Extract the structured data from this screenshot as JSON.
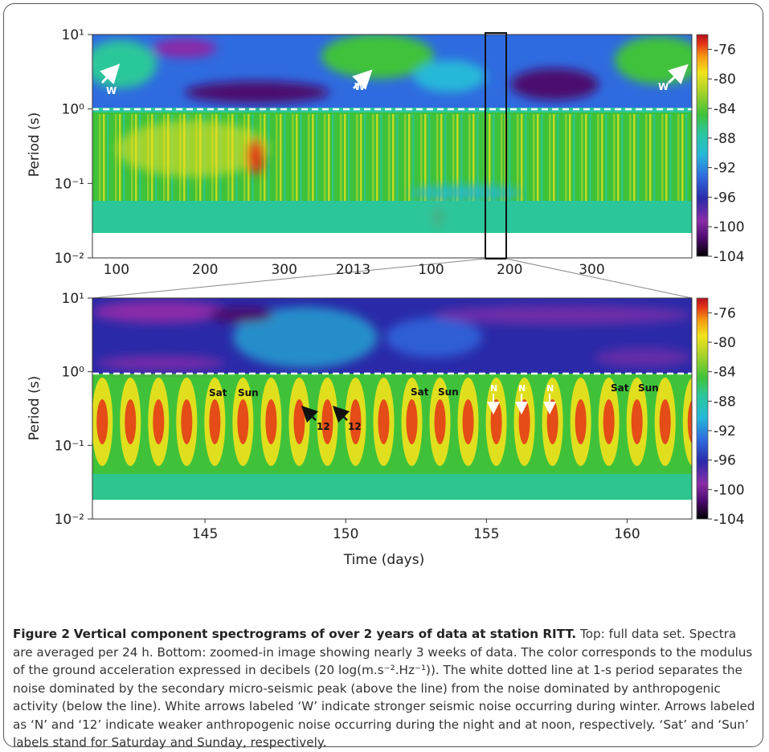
{
  "figure": {
    "label": "Figure 2",
    "title": "Vertical component spectrograms of over 2 years of data at station RITT.",
    "caption_text": "Top: full data set. Spectra are averaged per 24 h. Bottom: zoomed-in image showing nearly 3 weeks of data. The color corresponds to the modulus of the ground acceleration expressed in decibels (20 log(m.s⁻².Hz⁻¹)). The white dotted line at 1-s period separates the noise dominated by the secondary micro-seismic peak (above the line) from the noise dominated by anthropogenic activity (below the line). White arrows labeled ‘W’ indicate stronger seismic noise occurring during winter. Arrows labeled as ‘N’ and ‘12’ indicate weaker anthropogenic noise occurring during the night and at noon, respectively. ‘Sat’ and ‘Sun’ labels stand for Saturday and Sunday, respectively."
  },
  "colors": {
    "cmap": [
      "#000000",
      "#4b0a6e",
      "#8a2ca8",
      "#2a2aa8",
      "#2f6be0",
      "#25b8d8",
      "#2cc79a",
      "#3fc23a",
      "#a6d22a",
      "#f2e21c",
      "#f59a12",
      "#e43318",
      "#b0101a"
    ],
    "accent_white": "#ffffff",
    "box": "#111111"
  },
  "chart_data": [
    {
      "type": "heatmap",
      "panel": "top",
      "ylabel": "Period (s)",
      "yscale": "log",
      "ylim": [
        0.01,
        10
      ],
      "y_ticks": [
        "10¹",
        "10⁰",
        "10⁻¹",
        "10⁻²"
      ],
      "x_ticks": [
        "100",
        "200",
        "300",
        "2013",
        "100",
        "200",
        "300"
      ],
      "colorbar_ticks": [
        "-76",
        "-80",
        "-84",
        "-88",
        "-92",
        "-96",
        "-100",
        "-104"
      ],
      "colorbar_range": [
        -104,
        -74
      ],
      "dashed_line_period": 1,
      "annotations": [
        "W",
        "W",
        "W"
      ],
      "zoom_box_days": [
        140,
        162
      ]
    },
    {
      "type": "heatmap",
      "panel": "bottom",
      "ylabel": "Period (s)",
      "xlabel": "Time (days)",
      "yscale": "log",
      "ylim": [
        0.01,
        10
      ],
      "xlim": [
        141,
        162.3
      ],
      "y_ticks": [
        "10¹",
        "10⁰",
        "10⁻¹",
        "10⁻²"
      ],
      "x_ticks": [
        "145",
        "150",
        "155",
        "160"
      ],
      "colorbar_ticks": [
        "-76",
        "-80",
        "-84",
        "-88",
        "-92",
        "-96",
        "-100",
        "-104"
      ],
      "colorbar_range": [
        -104,
        -74
      ],
      "dashed_line_period": 1,
      "annotations": [
        "Sat",
        "Sun",
        "Sat",
        "Sun",
        "Sat",
        "Sun",
        "12",
        "12",
        "N",
        "N",
        "N"
      ]
    }
  ]
}
